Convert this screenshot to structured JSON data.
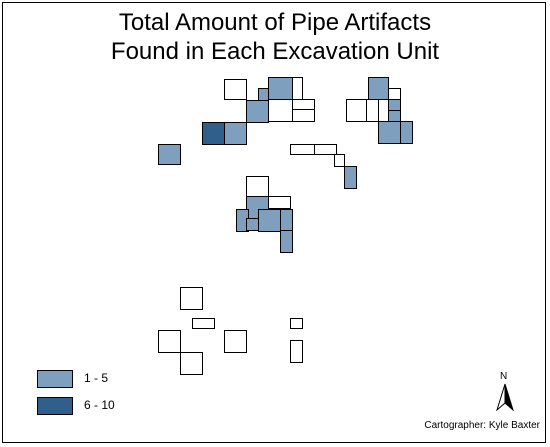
{
  "title": {
    "line1": "Total Amount of Pipe Artifacts",
    "line2": "Found in Each Excavation Unit"
  },
  "legend": [
    {
      "label": "1 - 5",
      "class_range": [
        1,
        5
      ],
      "color": "#7f9fbf"
    },
    {
      "label": "6 - 10",
      "class_range": [
        6,
        10
      ],
      "color": "#2f5f8a"
    }
  ],
  "colors": {
    "none": "#ffffff",
    "low": "#7f9fbf",
    "high": "#2f5f8a",
    "outline": "#000000"
  },
  "north_arrow": {
    "label": "N",
    "icon": "north-arrow-icon"
  },
  "credit": "Cartographer: Kyle Baxter"
}
